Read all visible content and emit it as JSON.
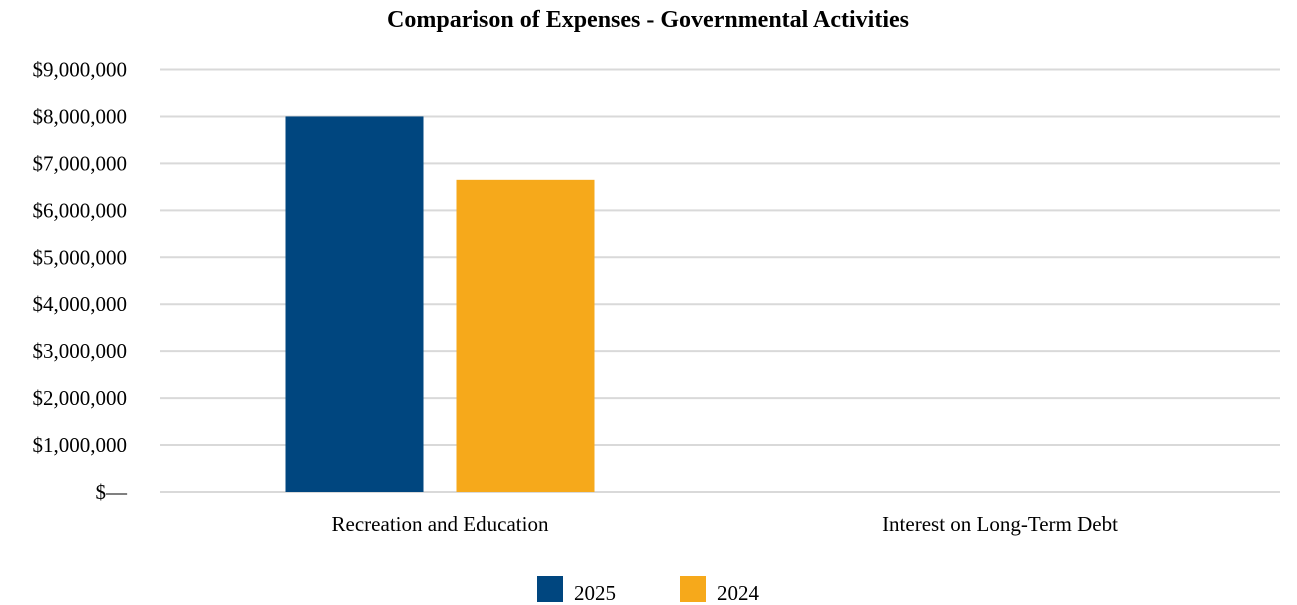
{
  "chart_data": {
    "type": "bar",
    "title": "Comparison of Expenses - Governmental Activities",
    "xlabel": "",
    "ylabel": "",
    "categories": [
      "Recreation and Education",
      "Interest on Long-Term Debt"
    ],
    "series": [
      {
        "name": "2025",
        "values": [
          8000000,
          0
        ],
        "color": "#00467f"
      },
      {
        "name": "2024",
        "values": [
          6650000,
          0
        ],
        "color": "#f6a91b"
      }
    ],
    "ylim": [
      0,
      9000000
    ],
    "ytick_values": [
      0,
      1000000,
      2000000,
      3000000,
      4000000,
      5000000,
      6000000,
      7000000,
      8000000,
      9000000
    ],
    "ytick_labels": [
      "$—",
      "$1,000,000",
      "$2,000,000",
      "$3,000,000",
      "$4,000,000",
      "$5,000,000",
      "$6,000,000",
      "$7,000,000",
      "$8,000,000",
      "$9,000,000"
    ],
    "grid": true,
    "grid_color": "#d9d9d9",
    "legend_position": "bottom"
  }
}
